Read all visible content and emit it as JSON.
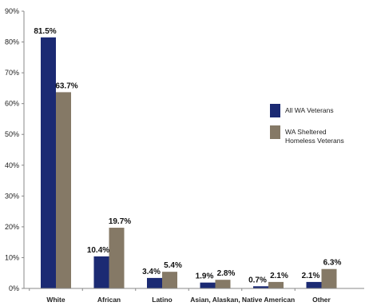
{
  "chart_data": {
    "type": "bar",
    "categories": [
      "White",
      "African",
      "Latino",
      "Asian, Alaskan,",
      "Native American",
      "Other"
    ],
    "series": [
      {
        "name": "All WA Veterans",
        "color": "#1b2a73",
        "values": [
          81.5,
          10.4,
          3.4,
          1.9,
          0.7,
          2.1
        ],
        "labels": [
          "81.5%",
          "10.4%",
          "3.4%",
          "1.9%",
          "0.7%",
          "2.1%"
        ]
      },
      {
        "name": "WA Sheltered\nHomeless Veterans",
        "color": "#857966",
        "values": [
          63.7,
          19.7,
          5.4,
          2.8,
          2.1,
          6.3
        ],
        "labels": [
          "63.7%",
          "19.7%",
          "5.4%",
          "2.8%",
          "2.1%",
          "6.3%"
        ]
      }
    ],
    "yticks": [
      "0%",
      "10%",
      "20%",
      "30%",
      "40%",
      "50%",
      "60%",
      "70%",
      "80%",
      "90%"
    ],
    "ylim": [
      0,
      90
    ],
    "grid": false,
    "legend_position": "right"
  }
}
